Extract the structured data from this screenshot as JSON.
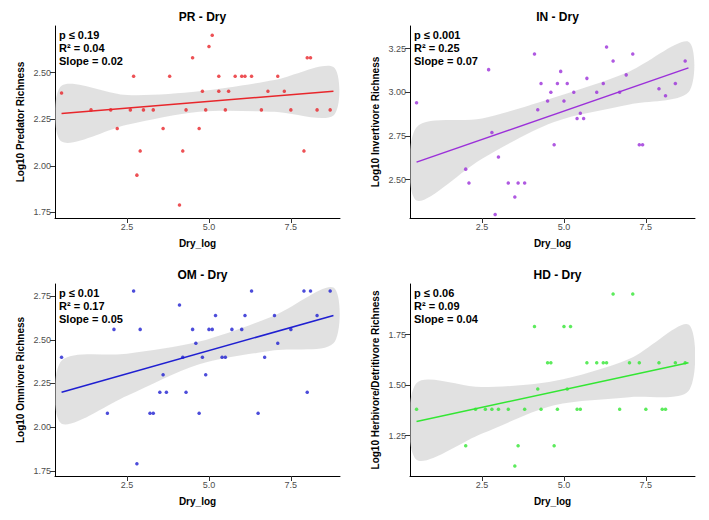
{
  "chart_data": [
    {
      "type": "scatter",
      "title": "PR - Dry",
      "x_label": "Dry_log",
      "y_label": "Log10 Predator Richness",
      "annotations": [
        "p ≤ 0.19",
        "R² = 0.04",
        "Slope = 0.02"
      ],
      "color": "#e8262b",
      "marker": "circle",
      "grid": false,
      "xlim": [
        0.3,
        9.0
      ],
      "xticks": [
        {
          "value": 2.5,
          "label": "2.5"
        },
        {
          "value": 5,
          "label": "5.0"
        },
        {
          "value": 7.5,
          "label": "7.5"
        }
      ],
      "ylim": [
        1.72,
        2.75
      ],
      "yticks": [
        1.75,
        {
          "value": 2,
          "label": "2.00"
        },
        2.25,
        {
          "value": 2.5,
          "label": "2.50"
        }
      ],
      "x": [
        0.5,
        1.4,
        2.0,
        2.2,
        2.6,
        2.7,
        2.8,
        2.9,
        3.0,
        3.3,
        3.6,
        3.8,
        4.1,
        4.2,
        4.3,
        4.5,
        4.7,
        4.8,
        4.9,
        5.0,
        5.1,
        5.3,
        5.3,
        5.5,
        5.6,
        5.8,
        6.0,
        6.1,
        6.3,
        6.6,
        6.8,
        7.1,
        7.3,
        7.5,
        7.9,
        8.0,
        8.1,
        8.3,
        8.7
      ],
      "values": [
        2.39,
        2.3,
        2.3,
        2.2,
        2.3,
        2.48,
        1.95,
        2.08,
        2.3,
        2.3,
        2.2,
        2.48,
        1.79,
        2.08,
        2.3,
        2.58,
        2.2,
        2.4,
        2.3,
        2.64,
        2.7,
        2.48,
        2.4,
        2.3,
        2.4,
        2.48,
        2.48,
        2.48,
        2.48,
        2.3,
        2.4,
        2.48,
        2.4,
        2.3,
        2.08,
        2.58,
        2.58,
        2.3,
        2.3
      ],
      "fit": {
        "x": [
          0.5,
          8.8
        ],
        "values": [
          2.28,
          2.4
        ]
      },
      "band": {
        "x": [
          0.5,
          2.5,
          4.7,
          7.0,
          8.8
        ],
        "lower": [
          2.13,
          2.22,
          2.29,
          2.29,
          2.27
        ],
        "upper": [
          2.43,
          2.38,
          2.4,
          2.46,
          2.53
        ]
      }
    },
    {
      "type": "scatter",
      "title": "IN - Dry",
      "x_label": "Dry_log",
      "y_label": "Log10 Invertivore Richness",
      "annotations": [
        "p ≤ 0.001",
        "R² = 0.25",
        "Slope = 0.07"
      ],
      "color": "#9b30d9",
      "marker": "circle",
      "grid": false,
      "xlim": [
        0.3,
        9.0
      ],
      "xticks": [
        {
          "value": 2.5,
          "label": "2.5"
        },
        {
          "value": 5,
          "label": "5.0"
        },
        {
          "value": 7.5,
          "label": "7.5"
        }
      ],
      "ylim": [
        2.28,
        3.38
      ],
      "yticks": [
        {
          "value": 2.5,
          "label": "2.50"
        },
        2.75,
        {
          "value": 3,
          "label": "3.00"
        },
        3.25
      ],
      "x": [
        0.5,
        2.0,
        2.1,
        2.7,
        2.8,
        2.9,
        3.0,
        3.3,
        3.5,
        3.6,
        3.8,
        4.1,
        4.2,
        4.3,
        4.5,
        4.6,
        4.7,
        4.8,
        4.9,
        5.0,
        5.1,
        5.3,
        5.4,
        5.5,
        5.6,
        5.7,
        6.0,
        6.2,
        6.3,
        6.5,
        6.7,
        6.9,
        7.1,
        7.3,
        7.4,
        7.9,
        8.1,
        8.4,
        8.7
      ],
      "values": [
        2.94,
        2.56,
        2.48,
        3.13,
        2.77,
        2.3,
        2.63,
        2.48,
        2.4,
        2.48,
        2.48,
        3.22,
        2.9,
        3.05,
        2.95,
        3.0,
        2.7,
        3.05,
        3.12,
        2.95,
        3.05,
        3.0,
        2.85,
        2.88,
        2.85,
        3.08,
        3.0,
        3.05,
        3.26,
        3.18,
        3.0,
        3.1,
        3.22,
        2.7,
        2.7,
        3.02,
        2.98,
        3.05,
        3.18
      ],
      "fit": {
        "x": [
          0.5,
          8.8
        ],
        "values": [
          2.6,
          3.14
        ]
      },
      "band": {
        "x": [
          0.5,
          2.5,
          4.7,
          7.0,
          8.8
        ],
        "lower": [
          2.38,
          2.62,
          2.83,
          2.93,
          3.0
        ],
        "upper": [
          2.8,
          2.85,
          2.97,
          3.12,
          3.29
        ]
      }
    },
    {
      "type": "scatter",
      "title": "OM - Dry",
      "x_label": "Dry_log",
      "y_label": "Log10 Omnivore Richness",
      "annotations": [
        "p ≤ 0.01",
        "R² = 0.17",
        "Slope = 0.05"
      ],
      "color": "#1f1fd1",
      "marker": "circle",
      "grid": false,
      "xlim": [
        0.3,
        9.0
      ],
      "xticks": [
        {
          "value": 2.5,
          "label": "2.5"
        },
        {
          "value": 5,
          "label": "5.0"
        },
        {
          "value": 7.5,
          "label": "7.5"
        }
      ],
      "ylim": [
        1.72,
        2.82
      ],
      "yticks": [
        1.75,
        {
          "value": 2,
          "label": "2.00"
        },
        2.25,
        {
          "value": 2.5,
          "label": "2.50"
        },
        2.75
      ],
      "x": [
        0.5,
        1.9,
        2.1,
        2.7,
        2.8,
        2.9,
        3.2,
        3.3,
        3.5,
        3.6,
        3.7,
        4.1,
        4.2,
        4.3,
        4.5,
        4.6,
        4.7,
        4.8,
        4.9,
        5.0,
        5.1,
        5.2,
        5.4,
        5.5,
        5.7,
        6.0,
        6.1,
        6.3,
        6.5,
        6.7,
        7.0,
        7.1,
        7.5,
        7.9,
        8.0,
        8.1,
        8.3,
        8.7
      ],
      "values": [
        2.4,
        2.08,
        2.56,
        2.78,
        1.79,
        2.56,
        2.08,
        2.08,
        2.2,
        2.3,
        2.2,
        2.7,
        2.4,
        2.2,
        2.56,
        2.48,
        2.08,
        2.4,
        2.3,
        2.56,
        2.56,
        2.64,
        2.4,
        2.4,
        2.56,
        2.56,
        2.64,
        2.78,
        2.08,
        2.4,
        2.64,
        2.48,
        2.56,
        2.78,
        2.2,
        2.78,
        2.64,
        2.78
      ],
      "fit": {
        "x": [
          0.5,
          8.8
        ],
        "values": [
          2.2,
          2.64
        ]
      },
      "band": {
        "x": [
          0.5,
          2.5,
          4.7,
          7.0,
          8.8
        ],
        "lower": [
          2.02,
          2.18,
          2.36,
          2.44,
          2.48
        ],
        "upper": [
          2.38,
          2.42,
          2.49,
          2.64,
          2.8
        ]
      }
    },
    {
      "type": "scatter",
      "title": "HD - Dry",
      "x_label": "Dry_log",
      "y_label": "Log10 Herbivore/Detritivore Richness",
      "annotations": [
        "p ≤ 0.06",
        "R² = 0.09",
        "Slope = 0.04"
      ],
      "color": "#33e633",
      "marker": "circle",
      "grid": false,
      "xlim": [
        0.3,
        9.0
      ],
      "xticks": [
        {
          "value": 2.5,
          "label": "2.5"
        },
        {
          "value": 5,
          "label": "5.0"
        },
        {
          "value": 7.5,
          "label": "7.5"
        }
      ],
      "ylim": [
        1.05,
        2.0
      ],
      "yticks": [
        1.25,
        {
          "value": 1.5,
          "label": "1.50"
        },
        1.75
      ],
      "x": [
        0.5,
        2.0,
        2.3,
        2.6,
        2.8,
        3.0,
        3.3,
        3.5,
        3.6,
        3.8,
        4.1,
        4.2,
        4.3,
        4.5,
        4.6,
        4.7,
        4.8,
        5.0,
        5.1,
        5.2,
        5.4,
        5.5,
        5.7,
        6.0,
        6.2,
        6.3,
        6.5,
        6.7,
        7.0,
        7.1,
        7.3,
        7.5,
        7.9,
        8.0,
        8.1,
        8.4,
        8.7
      ],
      "values": [
        1.38,
        1.2,
        1.38,
        1.38,
        1.38,
        1.38,
        1.38,
        1.1,
        1.2,
        1.38,
        1.79,
        1.48,
        1.38,
        1.61,
        1.61,
        1.2,
        1.38,
        1.79,
        1.48,
        1.79,
        1.38,
        1.38,
        1.61,
        1.61,
        1.61,
        1.61,
        1.95,
        1.38,
        1.61,
        1.95,
        1.61,
        1.38,
        1.61,
        1.38,
        1.38,
        1.61,
        1.61
      ],
      "fit": {
        "x": [
          0.5,
          8.8
        ],
        "values": [
          1.32,
          1.61
        ]
      },
      "band": {
        "x": [
          0.5,
          2.5,
          4.7,
          7.0,
          8.8
        ],
        "lower": [
          1.13,
          1.26,
          1.4,
          1.44,
          1.47
        ],
        "upper": [
          1.51,
          1.49,
          1.52,
          1.63,
          1.8
        ]
      }
    }
  ]
}
